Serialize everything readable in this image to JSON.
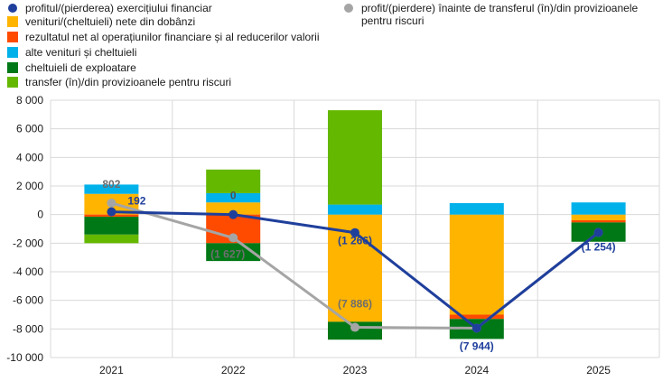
{
  "legend": {
    "items": [
      {
        "key": "profit_line",
        "label": "profitul/(pierderea) exercițiului financiar",
        "kind": "dot",
        "color": "#1f3f9c"
      },
      {
        "key": "net_interest",
        "label": "venituri/(cheltuieli) nete din dobânzi",
        "kind": "square",
        "color": "#ffb400"
      },
      {
        "key": "fin_ops",
        "label": "rezultatul net al operațiunilor financiare și al reducerilor valorii",
        "kind": "square",
        "color": "#ff4b00"
      },
      {
        "key": "other",
        "label": "alte venituri și cheltuieli",
        "kind": "square",
        "color": "#00b1ea"
      },
      {
        "key": "opex",
        "label": "cheltuieli de exploatare",
        "kind": "square",
        "color": "#007816"
      },
      {
        "key": "provisions",
        "label": "transfer (în)/din provizioanele pentru riscuri",
        "kind": "square",
        "color": "#65b800"
      },
      {
        "key": "pre_transfer_line",
        "label": "profit/(pierdere) înainte de transferul (în)/din provizioanele pentru riscuri",
        "kind": "dot",
        "color": "#a5a5a5"
      }
    ]
  },
  "chart_data": {
    "type": "bar",
    "stacked": true,
    "categories": [
      "2021",
      "2022",
      "2023",
      "2024",
      "2025"
    ],
    "ylim": [
      -10000,
      8000
    ],
    "yticks": [
      -10000,
      -8000,
      -6000,
      -4000,
      -2000,
      0,
      2000,
      4000,
      6000,
      8000
    ],
    "ytick_labels": [
      "-10 000",
      "-8 000",
      "-6 000",
      "-4 000",
      "-2 000",
      "0",
      "2 000",
      "4 000",
      "6 000",
      "8 000"
    ],
    "grid": true,
    "series": [
      {
        "name": "venituri/(cheltuieli) nete din dobânzi",
        "color": "#ffb400",
        "values": [
          1450,
          850,
          -7500,
          -7000,
          -400
        ]
      },
      {
        "name": "rezultatul net al operațiunilor financiare și al reducerilor valorii",
        "color": "#ff4b00",
        "values": [
          -150,
          -2000,
          0,
          -300,
          -150
        ]
      },
      {
        "name": "alte venituri și cheltuieli",
        "color": "#00b1ea",
        "values": [
          650,
          650,
          700,
          800,
          850
        ]
      },
      {
        "name": "cheltuieli de exploatare",
        "color": "#007816",
        "values": [
          -1250,
          -1250,
          -1250,
          -1400,
          -1350
        ]
      },
      {
        "name": "transfer (în)/din provizioanele pentru riscuri",
        "color": "#65b800",
        "values": [
          -600,
          1650,
          6600,
          0,
          0
        ]
      }
    ],
    "lines": [
      {
        "name": "profitul/(pierderea) exercițiului financiar",
        "color": "#1f3f9c",
        "values": [
          192,
          0,
          -1266,
          -7944,
          -1254
        ],
        "labels": [
          "192",
          "",
          "(1 266)",
          "(7 944)",
          "(1 254)"
        ]
      },
      {
        "name": "profit/(pierdere) înainte de transferul (în)/din provizioanele pentru riscuri",
        "color": "#a5a5a5",
        "values": [
          802,
          -1627,
          -7886,
          -7944,
          -1254
        ],
        "labels": [
          "802",
          "(1 627)",
          "(7 886)",
          "",
          ""
        ]
      }
    ],
    "extra_labels": [
      {
        "text": "0",
        "category": 1,
        "y": 0,
        "color": "#505050"
      }
    ]
  }
}
